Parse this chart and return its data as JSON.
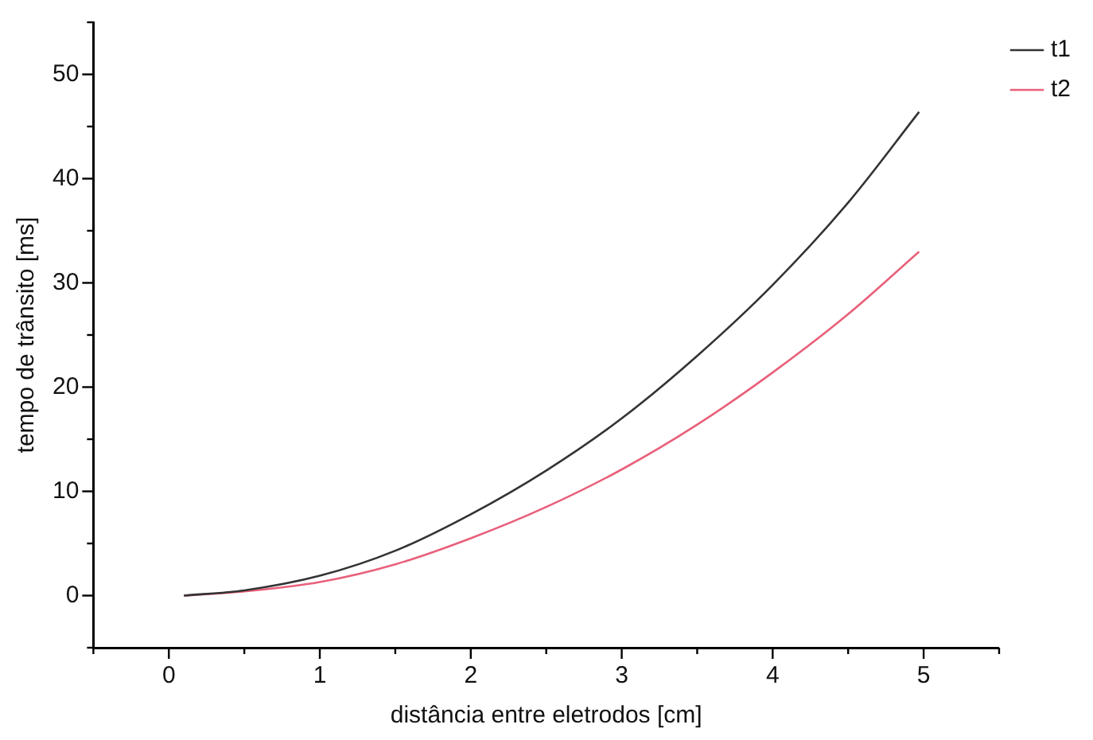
{
  "chart_data": {
    "type": "line",
    "xlabel": "distância entre eletrodos [cm]",
    "ylabel": "tempo de trânsito [ms]",
    "x": [
      0.1,
      0.5,
      1,
      1.5,
      2,
      2.5,
      3,
      3.5,
      4,
      4.5,
      4.97
    ],
    "series": [
      {
        "name": "t1",
        "color": "#333333",
        "values": [
          0,
          0.5,
          1.9,
          4.3,
          7.8,
          12.0,
          17.0,
          23.0,
          29.8,
          37.7,
          46.4
        ]
      },
      {
        "name": "t2",
        "color": "#e8607a",
        "values": [
          0,
          0.4,
          1.3,
          3.0,
          5.5,
          8.5,
          12.1,
          16.4,
          21.4,
          27.0,
          33.0
        ]
      }
    ],
    "xlim": [
      -0.5,
      5.5
    ],
    "ylim": [
      -5,
      55
    ],
    "xticks": [
      {
        "value": -0.5,
        "label": null
      },
      0,
      {
        "value": 0.5,
        "label": null
      },
      1,
      {
        "value": 1.5,
        "label": null
      },
      2,
      {
        "value": 2.5,
        "label": null
      },
      3,
      {
        "value": 3.5,
        "label": null
      },
      4,
      {
        "value": 4.5,
        "label": null
      },
      5,
      {
        "value": 5.5,
        "label": null
      }
    ],
    "yticks": [
      {
        "value": -5,
        "label": null
      },
      0,
      {
        "value": 5,
        "label": null
      },
      10,
      {
        "value": 15,
        "label": null
      },
      20,
      {
        "value": 25,
        "label": null
      },
      30,
      {
        "value": 35,
        "label": null
      },
      40,
      {
        "value": 45,
        "label": null
      },
      50,
      {
        "value": 55,
        "label": null
      }
    ],
    "legend": "top right",
    "marker": "none",
    "line_style": "solid"
  }
}
